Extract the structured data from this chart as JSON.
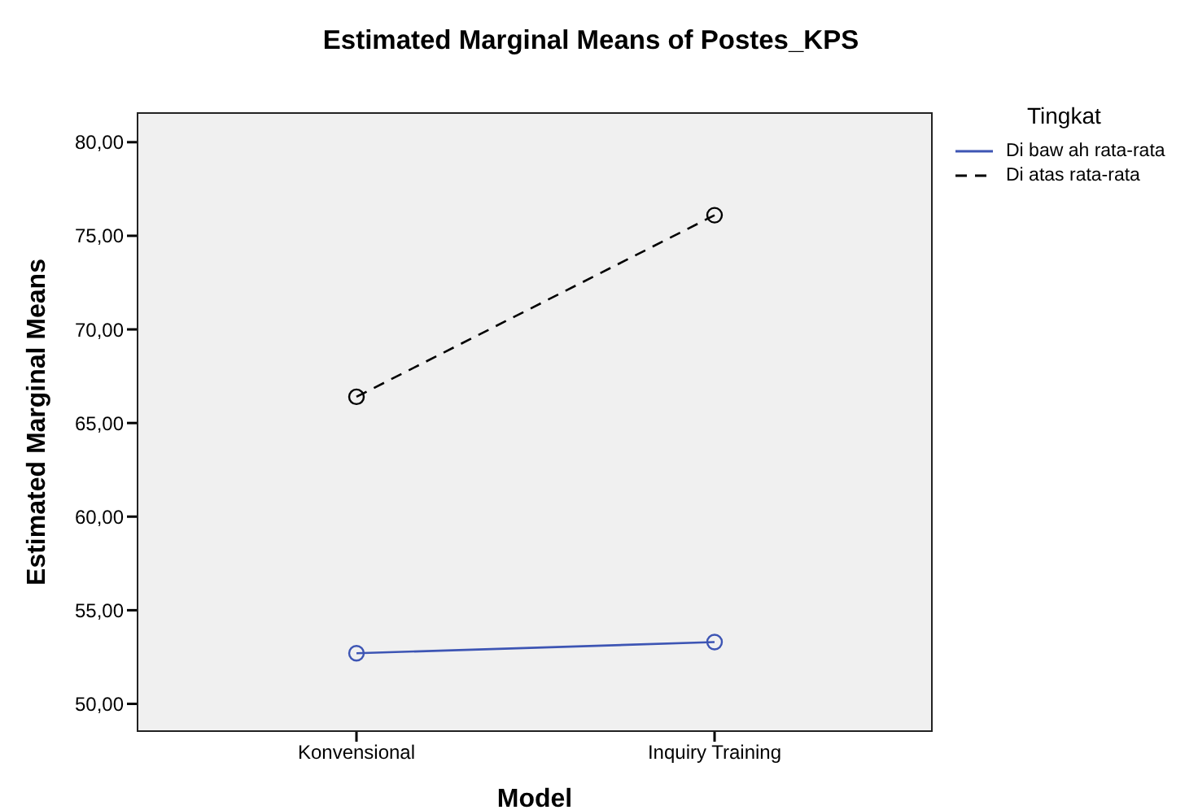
{
  "chart_data": {
    "type": "line",
    "title": "Estimated Marginal Means of Postes_KPS",
    "xlabel": "Model",
    "ylabel": "Estimated Marginal Means",
    "legend_title": "Tingkat",
    "categories": [
      "Konvensional",
      "Inquiry Training"
    ],
    "series": [
      {
        "name": "Di baw ah rata-rata",
        "color": "#3d55b4",
        "values": [
          52.7,
          53.3
        ],
        "line_style": "solid"
      },
      {
        "name": "Di atas rata-rata",
        "color": "#000000",
        "values": [
          66.4,
          76.1
        ],
        "line_style": "dashed"
      }
    ],
    "ylim": [
      48.5,
      81.6
    ],
    "yticks": [
      {
        "value": 50,
        "label": "50,00"
      },
      {
        "value": 55,
        "label": "55,00"
      },
      {
        "value": 60,
        "label": "60,00"
      },
      {
        "value": 65,
        "label": "65,00"
      },
      {
        "value": 70,
        "label": "70,00"
      },
      {
        "value": 75,
        "label": "75,00"
      },
      {
        "value": 80,
        "label": "80,00"
      }
    ],
    "marker": "circle",
    "legend": "top right",
    "grid": false
  }
}
